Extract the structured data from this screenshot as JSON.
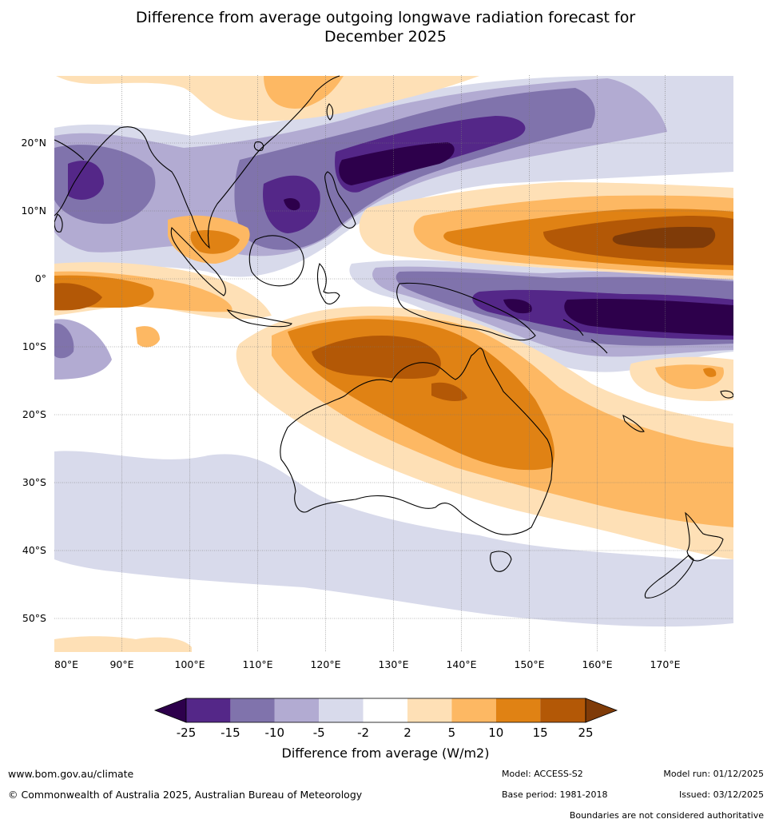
{
  "title": {
    "line1": "Difference from average outgoing longwave radiation forecast for",
    "line2": "December 2025"
  },
  "map": {
    "lon_labels": [
      "80°E",
      "90°E",
      "100°E",
      "110°E",
      "120°E",
      "130°E",
      "140°E",
      "150°E",
      "160°E",
      "170°E"
    ],
    "lat_labels": [
      "20°N",
      "10°N",
      "0°",
      "10°S",
      "20°S",
      "30°S",
      "40°S",
      "50°S"
    ],
    "lon_values": [
      80,
      90,
      100,
      110,
      120,
      130,
      140,
      150,
      160,
      170
    ],
    "lat_values": [
      20,
      10,
      0,
      -10,
      -20,
      -30,
      -40,
      -50
    ],
    "extent": {
      "lon_min": 80,
      "lon_max": 180,
      "lat_min": -55,
      "lat_max": 30
    }
  },
  "colorbar": {
    "title": "Difference from average (W/m2)",
    "ticks": [
      "-25",
      "-15",
      "-10",
      "-5",
      "-2",
      "2",
      "5",
      "10",
      "15",
      "25"
    ],
    "colors": [
      "#2d004b",
      "#542788",
      "#8073ac",
      "#b2abd2",
      "#d8daeb",
      "#ffffff",
      "#fee0b6",
      "#fdb863",
      "#e08214",
      "#b35806",
      "#7f3b08"
    ]
  },
  "footer": {
    "website": "www.bom.gov.au/climate",
    "copyright": "© Commonwealth of Australia 2025, Australian Bureau of Meteorology",
    "model": "Model: ACCESS-S2",
    "base_period": "Base period: 1981-2018",
    "model_run": "Model run: 01/12/2025",
    "issued": "Issued: 03/12/2025",
    "disclaimer": "Boundaries are not considered authoritative"
  }
}
